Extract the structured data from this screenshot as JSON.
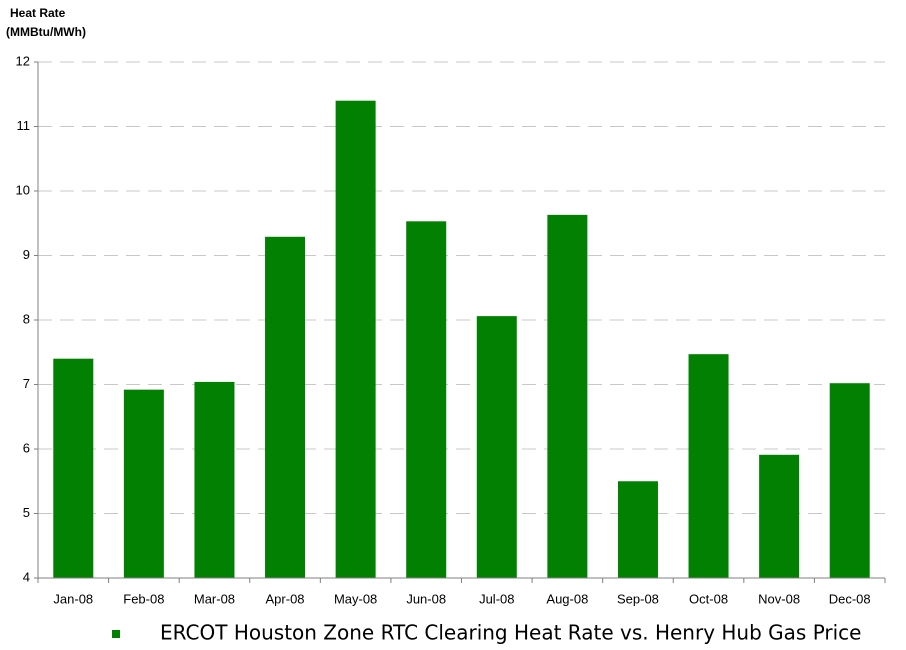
{
  "chart_data": {
    "type": "bar",
    "ylabel": [
      "Heat Rate",
      "(MMBtu/MWh)"
    ],
    "categories": [
      "Jan-08",
      "Feb-08",
      "Mar-08",
      "Apr-08",
      "May-08",
      "Jun-08",
      "Jul-08",
      "Aug-08",
      "Sep-08",
      "Oct-08",
      "Nov-08",
      "Dec-08"
    ],
    "series": [
      {
        "name": "ERCOT Houston Zone RTC Clearing Heat Rate vs. Henry Hub Gas Price",
        "color": "#028002",
        "values": [
          7.4,
          6.92,
          7.04,
          9.29,
          11.4,
          9.53,
          8.06,
          9.63,
          5.5,
          7.47,
          5.91,
          7.02
        ]
      }
    ],
    "ylim": [
      4,
      12
    ],
    "yticks": [
      4,
      5,
      6,
      7,
      8,
      9,
      10,
      11,
      12
    ],
    "grid": true,
    "legend": "bottom"
  }
}
